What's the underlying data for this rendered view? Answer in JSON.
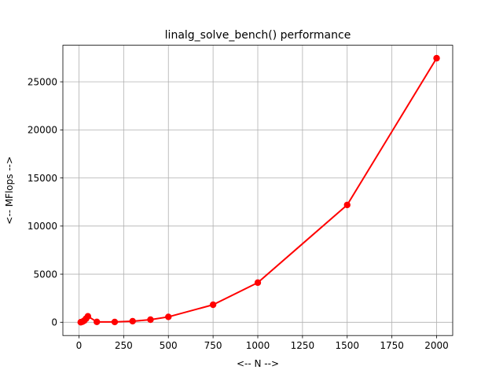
{
  "chart_data": {
    "type": "line",
    "title": "linalg_solve_bench() performance",
    "xlabel": "<-- N -->",
    "ylabel": "<-- MFlops -->",
    "xlim": [
      -90,
      2090
    ],
    "ylim": [
      -1380,
      28800
    ],
    "xticks": [
      0,
      250,
      500,
      750,
      1000,
      1250,
      1500,
      1750,
      2000
    ],
    "yticks": [
      0,
      5000,
      10000,
      15000,
      20000,
      25000
    ],
    "grid": true,
    "series": [
      {
        "color": "#ff0000",
        "marker": "circle",
        "points": [
          {
            "x": 10,
            "y": 5
          },
          {
            "x": 20,
            "y": 60
          },
          {
            "x": 30,
            "y": 180
          },
          {
            "x": 40,
            "y": 380
          },
          {
            "x": 50,
            "y": 620
          },
          {
            "x": 100,
            "y": 40
          },
          {
            "x": 200,
            "y": 30
          },
          {
            "x": 300,
            "y": 110
          },
          {
            "x": 400,
            "y": 270
          },
          {
            "x": 500,
            "y": 560
          },
          {
            "x": 750,
            "y": 1820
          },
          {
            "x": 1000,
            "y": 4120
          },
          {
            "x": 1500,
            "y": 12200
          },
          {
            "x": 2000,
            "y": 27450
          }
        ]
      }
    ]
  }
}
